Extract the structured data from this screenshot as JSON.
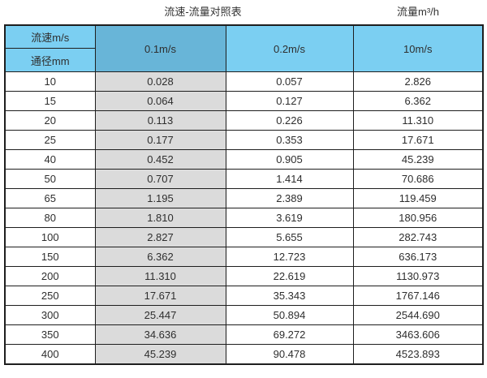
{
  "titles": {
    "left": "流速-流量对照表",
    "right": "流量m³/h"
  },
  "table": {
    "corner_top": "流速m/s",
    "corner_bottom": "通径mm",
    "columns": [
      "0.1m/s",
      "0.2m/s",
      "10m/s"
    ],
    "rows": [
      {
        "diameter": "10",
        "values": [
          "0.028",
          "0.057",
          "2.826"
        ]
      },
      {
        "diameter": "15",
        "values": [
          "0.064",
          "0.127",
          "6.362"
        ]
      },
      {
        "diameter": "20",
        "values": [
          "0.113",
          "0.226",
          "11.310"
        ]
      },
      {
        "diameter": "25",
        "values": [
          "0.177",
          "0.353",
          "17.671"
        ]
      },
      {
        "diameter": "40",
        "values": [
          "0.452",
          "0.905",
          "45.239"
        ]
      },
      {
        "diameter": "50",
        "values": [
          "0.707",
          "1.414",
          "70.686"
        ]
      },
      {
        "diameter": "65",
        "values": [
          "1.195",
          "2.389",
          "119.459"
        ]
      },
      {
        "diameter": "80",
        "values": [
          "1.810",
          "3.619",
          "180.956"
        ]
      },
      {
        "diameter": "100",
        "values": [
          "2.827",
          "5.655",
          "282.743"
        ]
      },
      {
        "diameter": "150",
        "values": [
          "6.362",
          "12.723",
          "636.173"
        ]
      },
      {
        "diameter": "200",
        "values": [
          "11.310",
          "22.619",
          "1130.973"
        ]
      },
      {
        "diameter": "250",
        "values": [
          "17.671",
          "35.343",
          "1767.146"
        ]
      },
      {
        "diameter": "300",
        "values": [
          "25.447",
          "50.894",
          "2544.690"
        ]
      },
      {
        "diameter": "350",
        "values": [
          "34.636",
          "69.272",
          "3463.606"
        ]
      },
      {
        "diameter": "400",
        "values": [
          "45.239",
          "90.478",
          "4523.893"
        ]
      }
    ]
  },
  "colors": {
    "header_blue": "#7bcff2",
    "header_dark_blue": "#68b5d8",
    "gray_column": "#dbdbdb",
    "border": "#1e1e1e",
    "text": "#2e2e2e"
  },
  "chart_data": {
    "type": "table",
    "title": "流速-流量对照表",
    "unit_label": "流量m³/h",
    "columns": [
      "通径mm",
      "0.1m/s",
      "0.2m/s",
      "10m/s"
    ],
    "rows": [
      [
        10,
        0.028,
        0.057,
        2.826
      ],
      [
        15,
        0.064,
        0.127,
        6.362
      ],
      [
        20,
        0.113,
        0.226,
        11.31
      ],
      [
        25,
        0.177,
        0.353,
        17.671
      ],
      [
        40,
        0.452,
        0.905,
        45.239
      ],
      [
        50,
        0.707,
        1.414,
        70.686
      ],
      [
        65,
        1.195,
        2.389,
        119.459
      ],
      [
        80,
        1.81,
        3.619,
        180.956
      ],
      [
        100,
        2.827,
        5.655,
        282.743
      ],
      [
        150,
        6.362,
        12.723,
        636.173
      ],
      [
        200,
        11.31,
        22.619,
        1130.973
      ],
      [
        250,
        17.671,
        35.343,
        1767.146
      ],
      [
        300,
        25.447,
        50.894,
        2544.69
      ],
      [
        350,
        34.636,
        69.272,
        3463.606
      ],
      [
        400,
        45.239,
        90.478,
        4523.893
      ]
    ]
  }
}
